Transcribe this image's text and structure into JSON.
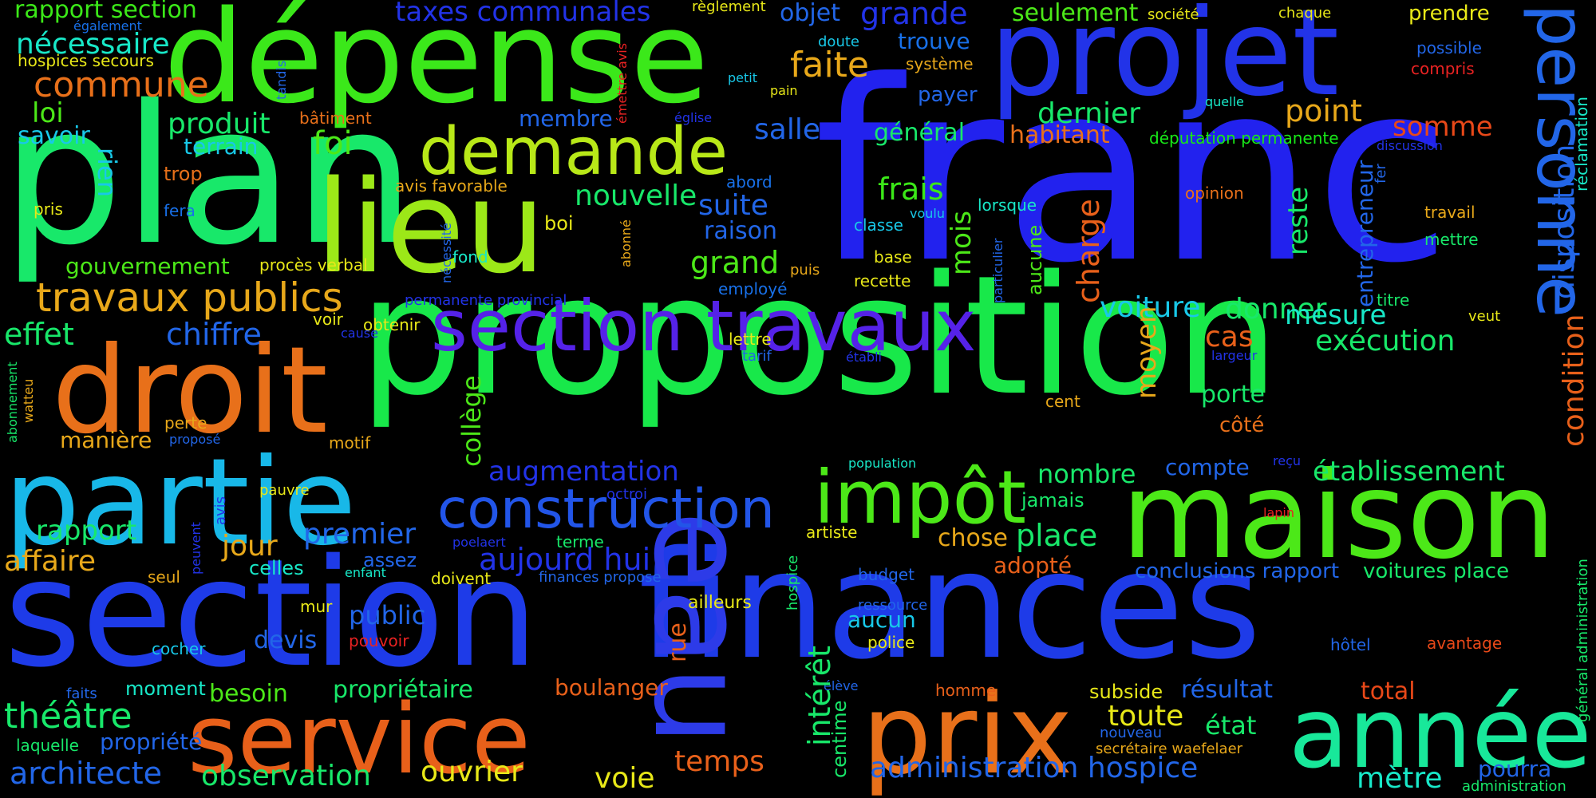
{
  "words": [
    {
      "text": "franc",
      "color": "#2222EE"
    },
    {
      "text": "proposition",
      "color": "#18E84A"
    },
    {
      "text": "plan",
      "color": "#18E86A"
    },
    {
      "text": "dépense",
      "color": "#3BE81A"
    },
    {
      "text": "section",
      "color": "#1E3BE8"
    },
    {
      "text": "finances",
      "color": "#1E3BE8"
    },
    {
      "text": "projet",
      "color": "#2233E8"
    },
    {
      "text": "maison",
      "color": "#4CE818"
    },
    {
      "text": "lieu",
      "color": "#9CE818"
    },
    {
      "text": "droit",
      "color": "#E8701A"
    },
    {
      "text": "partie",
      "color": "#18B8E8"
    },
    {
      "text": "eau",
      "color": "#2D3BE8"
    },
    {
      "text": "service",
      "color": "#E8601A"
    },
    {
      "text": "prix",
      "color": "#E8701A"
    },
    {
      "text": "année",
      "color": "#18E89A"
    },
    {
      "text": "section travaux",
      "color": "#5522E8"
    },
    {
      "text": "demande",
      "color": "#B8E818"
    },
    {
      "text": "impôt",
      "color": "#4CE818"
    },
    {
      "text": "construction",
      "color": "#2255E8"
    },
    {
      "text": "personne",
      "color": "#2266E8"
    },
    {
      "text": "travaux publics",
      "color": "#E8A81A"
    },
    {
      "text": "commune",
      "color": "#E8701A"
    },
    {
      "text": "nécessaire",
      "color": "#18E8C8"
    },
    {
      "text": "rapport section",
      "color": "#3BE818"
    },
    {
      "text": "hospices secours",
      "color": "#E8E818"
    },
    {
      "text": "loi",
      "color": "#4CE818"
    },
    {
      "text": "savoir",
      "color": "#18C8E8"
    },
    {
      "text": "produit",
      "color": "#18E86A"
    },
    {
      "text": "terrain",
      "color": "#18C8E8"
    },
    {
      "text": "foi",
      "color": "#4CE818"
    },
    {
      "text": "trop",
      "color": "#E8701A"
    },
    {
      "text": "rien",
      "color": "#18C8E8"
    },
    {
      "text": "pris",
      "color": "#E8E818"
    },
    {
      "text": "fera",
      "color": "#1870E8"
    },
    {
      "text": "gouvernement",
      "color": "#4CE818"
    },
    {
      "text": "procès verbal",
      "color": "#E8E818"
    },
    {
      "text": "avis favorable",
      "color": "#E8A81A"
    },
    {
      "text": "bâtiment",
      "color": "#E8701A"
    },
    {
      "text": "taxes communales",
      "color": "#2233E8"
    },
    {
      "text": "objet",
      "color": "#2266E8"
    },
    {
      "text": "grande",
      "color": "#2233E8"
    },
    {
      "text": "faite",
      "color": "#E8A81A"
    },
    {
      "text": "trouve",
      "color": "#1870E8"
    },
    {
      "text": "système",
      "color": "#E8A81A"
    },
    {
      "text": "payer",
      "color": "#2266E8"
    },
    {
      "text": "seulement",
      "color": "#4CE818"
    },
    {
      "text": "société",
      "color": "#E8E818"
    },
    {
      "text": "règlement",
      "color": "#E8E818"
    },
    {
      "text": "chaque",
      "color": "#E8E818"
    },
    {
      "text": "prendre",
      "color": "#E8E818"
    },
    {
      "text": "possible",
      "color": "#2266E8"
    },
    {
      "text": "compris",
      "color": "#E82222"
    },
    {
      "text": "doute",
      "color": "#18C8E8"
    },
    {
      "text": "petit",
      "color": "#18C8E8"
    },
    {
      "text": "pain",
      "color": "#E8E818"
    },
    {
      "text": "église",
      "color": "#2233E8"
    },
    {
      "text": "également",
      "color": "#1870E8"
    },
    {
      "text": "membre",
      "color": "#2266E8"
    },
    {
      "text": "salle",
      "color": "#2266E8"
    },
    {
      "text": "dernier",
      "color": "#18E86A"
    },
    {
      "text": "point",
      "color": "#E8A81A"
    },
    {
      "text": "habitant",
      "color": "#E8701A"
    },
    {
      "text": "somme",
      "color": "#E84818"
    },
    {
      "text": "général",
      "color": "#18E86A"
    },
    {
      "text": "députation permanente",
      "color": "#18E818"
    },
    {
      "text": "quelle",
      "color": "#18E8C8"
    },
    {
      "text": "discussion",
      "color": "#2233E8"
    },
    {
      "text": "frais",
      "color": "#3BE818"
    },
    {
      "text": "nouvelle",
      "color": "#18E86A"
    },
    {
      "text": "suite",
      "color": "#2266E8"
    },
    {
      "text": "raison",
      "color": "#2266E8"
    },
    {
      "text": "grand",
      "color": "#4CE818"
    },
    {
      "text": "abord",
      "color": "#1870E8"
    },
    {
      "text": "boi",
      "color": "#E8E818"
    },
    {
      "text": "fond",
      "color": "#18E8C8"
    },
    {
      "text": "classe",
      "color": "#18C8E8"
    },
    {
      "text": "base",
      "color": "#E8E818"
    },
    {
      "text": "recette",
      "color": "#E8E818"
    },
    {
      "text": "lorsque",
      "color": "#18E8C8"
    },
    {
      "text": "opinion",
      "color": "#E8701A"
    },
    {
      "text": "travail",
      "color": "#E8A81A"
    },
    {
      "text": "mettre",
      "color": "#18E86A"
    },
    {
      "text": "titre",
      "color": "#18E86A"
    },
    {
      "text": "veut",
      "color": "#E8E818"
    },
    {
      "text": "puis",
      "color": "#E8A81A"
    },
    {
      "text": "employé",
      "color": "#1870E8"
    },
    {
      "text": "permanente provincial",
      "color": "#2233E8"
    },
    {
      "text": "voiture",
      "color": "#18C8E8"
    },
    {
      "text": "donner",
      "color": "#18E86A"
    },
    {
      "text": "mesure",
      "color": "#18E8C8"
    },
    {
      "text": "exécution",
      "color": "#18E86A"
    },
    {
      "text": "chiffre",
      "color": "#2266E8"
    },
    {
      "text": "effet",
      "color": "#18E86A"
    },
    {
      "text": "voir",
      "color": "#E8E818"
    },
    {
      "text": "obtenir",
      "color": "#E8E818"
    },
    {
      "text": "cause",
      "color": "#2233E8"
    },
    {
      "text": "lettre",
      "color": "#E8E818"
    },
    {
      "text": "tarif",
      "color": "#2266E8"
    },
    {
      "text": "établi",
      "color": "#2233E8"
    },
    {
      "text": "largeur",
      "color": "#2233E8"
    },
    {
      "text": "cas",
      "color": "#E8601A"
    },
    {
      "text": "porte",
      "color": "#18E86A"
    },
    {
      "text": "côté",
      "color": "#E8701A"
    },
    {
      "text": "cent",
      "color": "#E8A81A"
    },
    {
      "text": "population",
      "color": "#18E8C8"
    },
    {
      "text": "reçu",
      "color": "#2233E8"
    },
    {
      "text": "manière",
      "color": "#E8A81A"
    },
    {
      "text": "perte",
      "color": "#E8A81A"
    },
    {
      "text": "proposé",
      "color": "#2266E8"
    },
    {
      "text": "motif",
      "color": "#E8A81A"
    },
    {
      "text": "augmentation",
      "color": "#2233E8"
    },
    {
      "text": "nombre",
      "color": "#18E86A"
    },
    {
      "text": "compte",
      "color": "#2266E8"
    },
    {
      "text": "établissement",
      "color": "#18E86A"
    },
    {
      "text": "jamais",
      "color": "#18E86A"
    },
    {
      "text": "pauvre",
      "color": "#E8E818"
    },
    {
      "text": "octroi",
      "color": "#2233E8"
    },
    {
      "text": "rapport",
      "color": "#18E86A"
    },
    {
      "text": "jour",
      "color": "#E8A81A"
    },
    {
      "text": "premier",
      "color": "#2266E8"
    },
    {
      "text": "affaire",
      "color": "#E8A81A"
    },
    {
      "text": "celles",
      "color": "#18E8C8"
    },
    {
      "text": "assez",
      "color": "#2266E8"
    },
    {
      "text": "aujourd hui",
      "color": "#2233E8"
    },
    {
      "text": "poelaert",
      "color": "#2233E8"
    },
    {
      "text": "terme",
      "color": "#18E86A"
    },
    {
      "text": "artiste",
      "color": "#E8E818"
    },
    {
      "text": "chose",
      "color": "#E8A81A"
    },
    {
      "text": "place",
      "color": "#18E86A"
    },
    {
      "text": "adopté",
      "color": "#E8601A"
    },
    {
      "text": "conclusions rapport",
      "color": "#2266E8"
    },
    {
      "text": "voitures place",
      "color": "#18E86A"
    },
    {
      "text": "lapin",
      "color": "#E82222"
    },
    {
      "text": "seul",
      "color": "#E8A81A"
    },
    {
      "text": "enfant",
      "color": "#18E8C8"
    },
    {
      "text": "doivent",
      "color": "#E8E818"
    },
    {
      "text": "finances propose",
      "color": "#2266E8"
    },
    {
      "text": "budget",
      "color": "#2266E8"
    },
    {
      "text": "ressource",
      "color": "#2266E8"
    },
    {
      "text": "public",
      "color": "#2266E8"
    },
    {
      "text": "mur",
      "color": "#E8E818"
    },
    {
      "text": "ailleurs",
      "color": "#E8E818"
    },
    {
      "text": "aucun",
      "color": "#18C8E8"
    },
    {
      "text": "police",
      "color": "#E8E818"
    },
    {
      "text": "devis",
      "color": "#2266E8"
    },
    {
      "text": "pouvoir",
      "color": "#E82222"
    },
    {
      "text": "cocher",
      "color": "#18C8E8"
    },
    {
      "text": "faits",
      "color": "#2266E8"
    },
    {
      "text": "moment",
      "color": "#18E8C8"
    },
    {
      "text": "besoin",
      "color": "#4CE818"
    },
    {
      "text": "propriétaire",
      "color": "#18E86A"
    },
    {
      "text": "boulanger",
      "color": "#E8601A"
    },
    {
      "text": "élève",
      "color": "#2266E8"
    },
    {
      "text": "homme",
      "color": "#E8601A"
    },
    {
      "text": "subside",
      "color": "#E8E818"
    },
    {
      "text": "résultat",
      "color": "#2266E8"
    },
    {
      "text": "hôtel",
      "color": "#2266E8"
    },
    {
      "text": "avantage",
      "color": "#E84818"
    },
    {
      "text": "total",
      "color": "#E84818"
    },
    {
      "text": "théâtre",
      "color": "#18E86A"
    },
    {
      "text": "propriété",
      "color": "#2266E8"
    },
    {
      "text": "laquelle",
      "color": "#18E86A"
    },
    {
      "text": "architecte",
      "color": "#2266E8"
    },
    {
      "text": "observation",
      "color": "#18E86A"
    },
    {
      "text": "ouvrier",
      "color": "#E8E818"
    },
    {
      "text": "voie",
      "color": "#E8E818"
    },
    {
      "text": "temps",
      "color": "#E8601A"
    },
    {
      "text": "administration hospice",
      "color": "#2266E8"
    },
    {
      "text": "toute",
      "color": "#E8E818"
    },
    {
      "text": "état",
      "color": "#18E86A"
    },
    {
      "text": "nouveau",
      "color": "#2266E8"
    },
    {
      "text": "secrétaire waefelaer",
      "color": "#E8A81A"
    },
    {
      "text": "mètre",
      "color": "#18E8C8"
    },
    {
      "text": "pourra",
      "color": "#2266E8"
    },
    {
      "text": "administration",
      "color": "#18E86A"
    },
    {
      "text": "charge",
      "color": "#E8601A"
    },
    {
      "text": "mois",
      "color": "#4CE818"
    },
    {
      "text": "reste",
      "color": "#18E86A"
    },
    {
      "text": "moyen",
      "color": "#E8A81A"
    },
    {
      "text": "collège",
      "color": "#4CE818"
    },
    {
      "text": "intérêt",
      "color": "#18E86A"
    },
    {
      "text": "rue",
      "color": "#E8601A"
    },
    {
      "text": "centime",
      "color": "#18E86A"
    },
    {
      "text": "hospice",
      "color": "#18E86A"
    },
    {
      "text": "aucune",
      "color": "#4CE818"
    },
    {
      "text": "particulier",
      "color": "#2266E8"
    },
    {
      "text": "voulu",
      "color": "#18C8E8"
    },
    {
      "text": "nécessité",
      "color": "#2266E8"
    },
    {
      "text": "abonné",
      "color": "#E8A81A"
    },
    {
      "text": "tandis",
      "color": "#2266E8"
    },
    {
      "text": "émettre avis",
      "color": "#E82222"
    },
    {
      "text": "entrepreneur",
      "color": "#2266E8"
    },
    {
      "text": "disposition",
      "color": "#2266E8"
    },
    {
      "text": "condition",
      "color": "#E8601A"
    },
    {
      "text": "fer",
      "color": "#2266E8"
    },
    {
      "text": "réclamation",
      "color": "#18E8C8"
    },
    {
      "text": "abonnement",
      "color": "#18E86A"
    },
    {
      "text": "watteu",
      "color": "#E8A81A"
    },
    {
      "text": "peuvent",
      "color": "#2233E8"
    },
    {
      "text": "avis",
      "color": "#2233E8"
    },
    {
      "text": "général administration",
      "color": "#18E86A"
    }
  ]
}
